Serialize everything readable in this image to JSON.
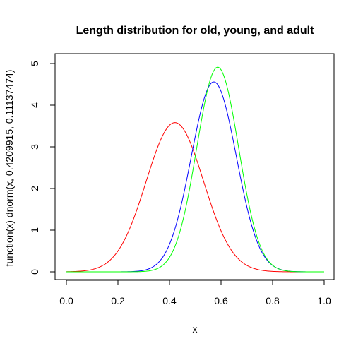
{
  "chart_data": {
    "type": "line",
    "title": "Length distribution for old, young, and adult",
    "xlabel": "x",
    "ylabel": "function(x) dnorm(x, 0.4209915, 0.11137474)",
    "xlim": [
      0,
      1
    ],
    "ylim": [
      0,
      5
    ],
    "x_ticks": [
      "0.0",
      "0.2",
      "0.4",
      "0.6",
      "0.8",
      "1.0"
    ],
    "y_ticks": [
      "0",
      "1",
      "2",
      "3",
      "4",
      "5"
    ],
    "grid": false,
    "legend": "none",
    "series": [
      {
        "color": "#ff0000",
        "distribution": "normal",
        "mean": 0.4209915,
        "sd": 0.11137474
      },
      {
        "color": "#0000ff",
        "distribution": "normal",
        "mean": 0.572,
        "sd": 0.0875
      },
      {
        "color": "#00ff00",
        "distribution": "normal",
        "mean": 0.587,
        "sd": 0.0812
      }
    ]
  }
}
